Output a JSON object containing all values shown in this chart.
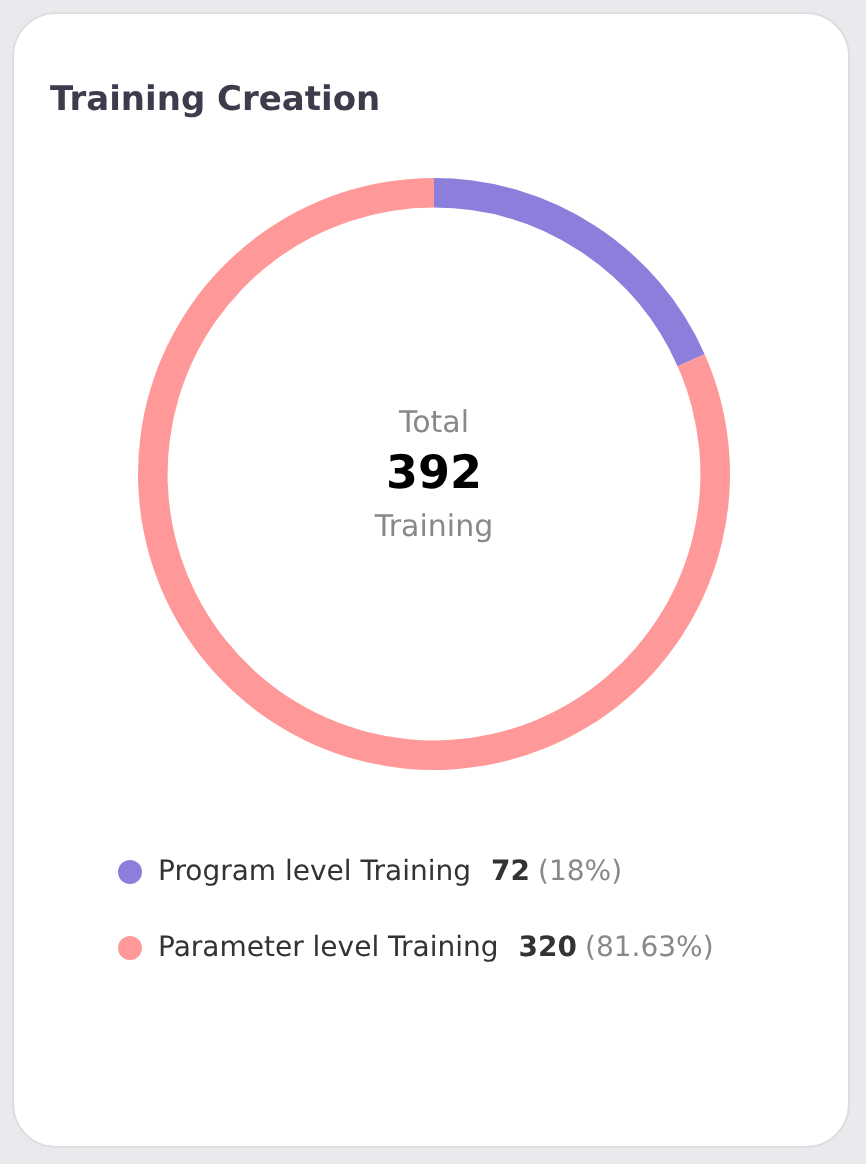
{
  "chart_data": {
    "type": "donut",
    "title": "Training Creation",
    "categories": [
      "Program level Training",
      "Parameter level Training"
    ],
    "values": [
      72,
      320
    ],
    "colors": [
      "#8b7fdb",
      "#ff9999"
    ],
    "value_labels": [
      "72 (18%)",
      "320 (81.63%)"
    ],
    "annotations": [
      "Total",
      "392",
      "Training"
    ],
    "legend": "bottom"
  }
}
